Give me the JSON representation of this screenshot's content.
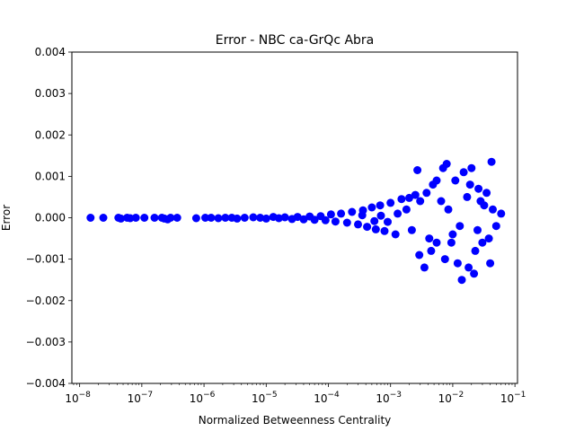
{
  "chart_data": {
    "type": "scatter",
    "title": "Error - NBC ca-GrQc Abra",
    "xlabel": "Normalized Betweenness Centrality",
    "ylabel": "Error",
    "xscale": "log",
    "xlim": [
      7.5e-09,
      0.11
    ],
    "ylim": [
      -0.004,
      0.004
    ],
    "grid": false,
    "marker_color": "#0000ff",
    "x_ticks": [
      {
        "value": 1e-08,
        "base": "10",
        "exp": "−8"
      },
      {
        "value": 1e-07,
        "base": "10",
        "exp": "−7"
      },
      {
        "value": 1e-06,
        "base": "10",
        "exp": "−6"
      },
      {
        "value": 1e-05,
        "base": "10",
        "exp": "−5"
      },
      {
        "value": 0.0001,
        "base": "10",
        "exp": "−4"
      },
      {
        "value": 0.001,
        "base": "10",
        "exp": "−3"
      },
      {
        "value": 0.01,
        "base": "10",
        "exp": "−2"
      },
      {
        "value": 0.1,
        "base": "10",
        "exp": "−1"
      }
    ],
    "y_ticks": [
      {
        "value": 0.004,
        "label": "0.004"
      },
      {
        "value": 0.003,
        "label": "0.003"
      },
      {
        "value": 0.002,
        "label": "0.002"
      },
      {
        "value": 0.001,
        "label": "0.001"
      },
      {
        "value": 0.0,
        "label": "0.000"
      },
      {
        "value": -0.001,
        "label": "−0.001"
      },
      {
        "value": -0.002,
        "label": "−0.002"
      },
      {
        "value": -0.003,
        "label": "−0.003"
      },
      {
        "value": -0.004,
        "label": "−0.004"
      }
    ],
    "points": [
      [
        1.5e-08,
        0.0
      ],
      [
        2.4e-08,
        0.0
      ],
      [
        4.2e-08,
        0.0
      ],
      [
        4.6e-08,
        -2e-05
      ],
      [
        5.8e-08,
        0.0
      ],
      [
        6.5e-08,
        -1e-05
      ],
      [
        8e-08,
        0.0
      ],
      [
        1.1e-07,
        0.0
      ],
      [
        1.6e-07,
        0.0
      ],
      [
        2.1e-07,
        0.0
      ],
      [
        2.3e-07,
        -2e-05
      ],
      [
        2.6e-07,
        -4e-05
      ],
      [
        2.9e-07,
        0.0
      ],
      [
        3.7e-07,
        0.0
      ],
      [
        7.5e-07,
        -1e-05
      ],
      [
        1.05e-06,
        0.0
      ],
      [
        1.3e-06,
        0.0
      ],
      [
        1.7e-06,
        -1e-05
      ],
      [
        2.2e-06,
        0.0
      ],
      [
        2.8e-06,
        0.0
      ],
      [
        3.4e-06,
        -2e-05
      ],
      [
        4.5e-06,
        0.0
      ],
      [
        6.2e-06,
        1e-05
      ],
      [
        8e-06,
        0.0
      ],
      [
        1e-05,
        -2e-05
      ],
      [
        1.3e-05,
        2e-05
      ],
      [
        1.6e-05,
        -1e-05
      ],
      [
        2e-05,
        1e-05
      ],
      [
        2.6e-05,
        -3e-05
      ],
      [
        3.2e-05,
        2e-05
      ],
      [
        4e-05,
        -4e-05
      ],
      [
        5e-05,
        3e-05
      ],
      [
        6e-05,
        -5e-05
      ],
      [
        7.5e-05,
        4e-05
      ],
      [
        9e-05,
        -6e-05
      ],
      [
        0.00011,
        8e-05
      ],
      [
        0.00013,
        -9e-05
      ],
      [
        0.00016,
        0.0001
      ],
      [
        0.0002,
        -0.00012
      ],
      [
        0.00024,
        0.00014
      ],
      [
        0.0003,
        -0.00016
      ],
      [
        0.00036,
        0.00018
      ],
      [
        0.00042,
        -0.00022
      ],
      [
        0.0005,
        0.00025
      ],
      [
        0.00058,
        -0.00028
      ],
      [
        0.00068,
        0.0003
      ],
      [
        0.0008,
        -0.00032
      ],
      [
        0.001,
        0.00036
      ],
      [
        0.0012,
        -0.0004
      ],
      [
        0.0015,
        0.00045
      ],
      [
        0.002,
        0.00048
      ],
      [
        0.0025,
        0.00055
      ],
      [
        0.0027,
        0.00115
      ],
      [
        0.0029,
        -0.0009
      ],
      [
        0.0035,
        -0.0012
      ],
      [
        0.0038,
        0.0006
      ],
      [
        0.0048,
        0.0008
      ],
      [
        0.0055,
        -0.0006
      ],
      [
        0.007,
        0.0012
      ],
      [
        0.0075,
        -0.001
      ],
      [
        0.008,
        0.0013
      ],
      [
        0.0095,
        -0.0006
      ],
      [
        0.011,
        0.0009
      ],
      [
        0.012,
        -0.0011
      ],
      [
        0.014,
        -0.0015
      ],
      [
        0.015,
        0.0011
      ],
      [
        0.018,
        -0.0012
      ],
      [
        0.02,
        0.0012
      ],
      [
        0.022,
        -0.00135
      ],
      [
        0.026,
        0.0007
      ],
      [
        0.03,
        -0.0006
      ],
      [
        0.035,
        0.0006
      ],
      [
        0.04,
        -0.0011
      ],
      [
        0.042,
        0.00135
      ],
      [
        0.044,
        0.0002
      ],
      [
        0.06,
        0.0001
      ],
      [
        0.05,
        -0.0002
      ],
      [
        0.032,
        0.0003
      ],
      [
        0.025,
        -0.0003
      ],
      [
        0.017,
        0.0005
      ],
      [
        0.01,
        -0.0004
      ],
      [
        0.0065,
        0.0004
      ],
      [
        0.0042,
        -0.0005
      ],
      [
        0.003,
        0.0004
      ],
      [
        0.0022,
        -0.0003
      ],
      [
        0.0018,
        0.0002
      ],
      [
        0.0013,
        0.0001
      ],
      [
        0.0009,
        -0.0001
      ],
      [
        0.0007,
        5e-05
      ],
      [
        0.00055,
        -8e-05
      ],
      [
        0.00035,
        6e-05
      ],
      [
        0.0085,
        0.0002
      ],
      [
        0.013,
        -0.0002
      ],
      [
        0.028,
        0.0004
      ],
      [
        0.038,
        -0.0005
      ],
      [
        0.0055,
        0.0009
      ],
      [
        0.0045,
        -0.0008
      ],
      [
        0.019,
        0.0008
      ],
      [
        0.023,
        -0.0008
      ]
    ]
  }
}
